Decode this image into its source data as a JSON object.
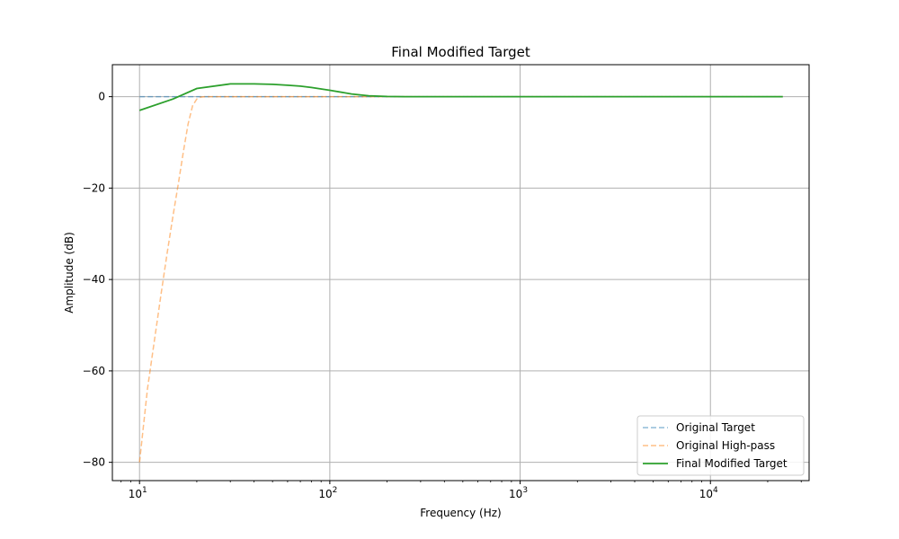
{
  "chart_data": {
    "type": "line",
    "title": "Final Modified Target",
    "xlabel": "Frequency (Hz)",
    "ylabel": "Amplitude (dB)",
    "xscale": "log",
    "xlim": [
      7.2,
      33000
    ],
    "ylim": [
      -84,
      7
    ],
    "xticks": [
      {
        "value": 10,
        "base": "10",
        "exp": "1"
      },
      {
        "value": 100,
        "base": "10",
        "exp": "2"
      },
      {
        "value": 1000,
        "base": "10",
        "exp": "3"
      },
      {
        "value": 10000,
        "base": "10",
        "exp": "4"
      }
    ],
    "yticks": [
      {
        "value": 0,
        "label": "0"
      },
      {
        "value": -20,
        "label": "−20"
      },
      {
        "value": -40,
        "label": "−40"
      },
      {
        "value": -60,
        "label": "−60"
      },
      {
        "value": -80,
        "label": "−80"
      }
    ],
    "grid": true,
    "legend_position": "lower-right",
    "series": [
      {
        "name": "Original Target",
        "color": "#1f77b4",
        "dash": "dashed",
        "opacity": 0.5,
        "x": [
          10,
          24000
        ],
        "y": [
          0,
          0
        ]
      },
      {
        "name": "Original High-pass",
        "color": "#ff7f0e",
        "dash": "dashed",
        "opacity": 0.5,
        "x": [
          10,
          11,
          12,
          13,
          14,
          15,
          16,
          17,
          18,
          19,
          20,
          21,
          22,
          24,
          30,
          100,
          24000
        ],
        "y": [
          -80,
          -64,
          -53,
          -43,
          -34,
          -26,
          -19,
          -12,
          -6,
          -2,
          -0.5,
          -0.1,
          0,
          0,
          0,
          0,
          0
        ]
      },
      {
        "name": "Final Modified Target",
        "color": "#2ca02c",
        "dash": "solid",
        "opacity": 1,
        "x": [
          10,
          15,
          20,
          30,
          40,
          50,
          60,
          70,
          80,
          100,
          130,
          160,
          200,
          250,
          300,
          500,
          1000,
          10000,
          24000
        ],
        "y": [
          -3,
          -0.5,
          1.8,
          2.8,
          2.8,
          2.7,
          2.5,
          2.3,
          2.0,
          1.4,
          0.6,
          0.2,
          0.05,
          0,
          0,
          0,
          0,
          0,
          0
        ]
      }
    ]
  }
}
